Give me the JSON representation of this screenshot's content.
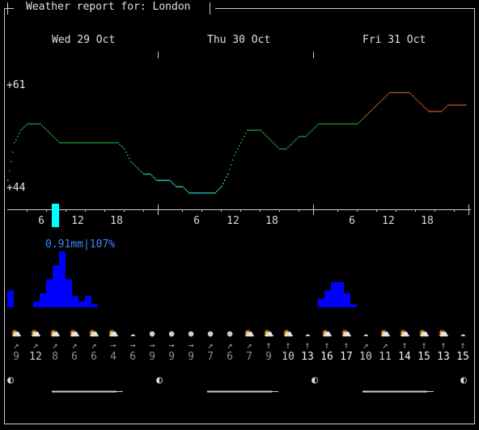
{
  "title": "Weather report for: London",
  "days": [
    "Wed 29 Oct",
    "Thu 30 Oct",
    "Fri 31 Oct"
  ],
  "temperature_labels": {
    "max": "+61",
    "min": "+44"
  },
  "hour_ticks": [
    "6",
    "12",
    "18",
    "6",
    "12",
    "18",
    "6",
    "12",
    "18"
  ],
  "precip_label": "0.91mm|107%",
  "colors": {
    "cold": "#33e6e6",
    "mild": "#22b14c",
    "warm": "#e65c2a",
    "rain": "#0000ff",
    "precip_text": "#3b8bff",
    "current_hour": "#00ffff"
  },
  "icons": [
    "cloud-sun",
    "cloud-sun",
    "cloud-sun",
    "cloud-sun",
    "cloud-sun",
    "cloud-sun",
    "cloud",
    "moon-full",
    "moon-full",
    "moon-full",
    "moon-full",
    "moon-full",
    "cloud-sun",
    "cloud-sun",
    "cloud-sun",
    "cloud",
    "cloud-sun",
    "cloud-sun",
    "cloud",
    "cloud-sun",
    "cloud-sun",
    "cloud-sun",
    "cloud-sun",
    "cloud"
  ],
  "wind_dirs": [
    "↗",
    "↗",
    "↗",
    "↗",
    "↗",
    "→",
    "→",
    "→",
    "→",
    "→",
    "↗",
    "↗",
    "↗",
    "↑",
    "↑",
    "↑",
    "↑",
    "↑",
    "↗",
    "↗",
    "↑",
    "↑",
    "↑",
    "↑"
  ],
  "wind_speeds": [
    "9",
    "12",
    "8",
    "6",
    "6",
    "4",
    "6",
    "9",
    "9",
    "9",
    "7",
    "6",
    "7",
    "9",
    "10",
    "13",
    "16",
    "17",
    "10",
    "11",
    "14",
    "15",
    "13",
    "15"
  ],
  "moon_phase": "◐",
  "chart_data": {
    "type": "line",
    "title": "",
    "ylim": [
      44,
      61
    ],
    "temperature_points": [
      [
        0,
        46
      ],
      [
        1,
        52
      ],
      [
        2,
        54
      ],
      [
        3,
        55
      ],
      [
        4,
        55
      ],
      [
        5,
        55
      ],
      [
        6,
        54
      ],
      [
        7,
        53
      ],
      [
        8,
        52
      ],
      [
        9,
        52
      ],
      [
        10,
        52
      ],
      [
        11,
        52
      ],
      [
        12,
        52
      ],
      [
        13,
        52
      ],
      [
        14,
        52
      ],
      [
        15,
        52
      ],
      [
        16,
        52
      ],
      [
        17,
        52
      ],
      [
        18,
        51
      ],
      [
        19,
        49
      ],
      [
        20,
        48
      ],
      [
        21,
        47
      ],
      [
        22,
        47
      ],
      [
        23,
        46
      ],
      [
        24,
        46
      ],
      [
        25,
        46
      ],
      [
        26,
        45
      ],
      [
        27,
        45
      ],
      [
        28,
        44
      ],
      [
        29,
        44
      ],
      [
        30,
        44
      ],
      [
        31,
        44
      ],
      [
        32,
        44
      ],
      [
        33,
        45
      ],
      [
        34,
        47
      ],
      [
        35,
        50
      ],
      [
        36,
        52
      ],
      [
        37,
        54
      ],
      [
        38,
        54
      ],
      [
        39,
        54
      ],
      [
        40,
        53
      ],
      [
        41,
        52
      ],
      [
        42,
        51
      ],
      [
        43,
        51
      ],
      [
        44,
        52
      ],
      [
        45,
        53
      ],
      [
        46,
        53
      ],
      [
        47,
        54
      ],
      [
        48,
        55
      ],
      [
        49,
        55
      ],
      [
        50,
        55
      ],
      [
        51,
        55
      ],
      [
        52,
        55
      ],
      [
        53,
        55
      ],
      [
        54,
        55
      ],
      [
        55,
        56
      ],
      [
        56,
        57
      ],
      [
        57,
        58
      ],
      [
        58,
        59
      ],
      [
        59,
        60
      ],
      [
        60,
        60
      ],
      [
        61,
        60
      ],
      [
        62,
        60
      ],
      [
        63,
        59
      ],
      [
        64,
        58
      ],
      [
        65,
        57
      ],
      [
        66,
        57
      ],
      [
        67,
        57
      ],
      [
        68,
        58
      ],
      [
        69,
        58
      ],
      [
        70,
        58
      ],
      [
        71,
        58
      ]
    ],
    "precipitation_mm": [
      0.06,
      0,
      0,
      0,
      0.02,
      0.05,
      0.1,
      0.15,
      0.2,
      0.1,
      0.04,
      0.02,
      0.04,
      0.01,
      0,
      0,
      0,
      0,
      0,
      0,
      0,
      0,
      0,
      0,
      0,
      0,
      0,
      0,
      0,
      0,
      0,
      0,
      0,
      0,
      0,
      0,
      0,
      0,
      0,
      0,
      0,
      0,
      0,
      0,
      0,
      0,
      0,
      0,
      0.03,
      0.06,
      0.09,
      0.09,
      0.05,
      0.01,
      0,
      0,
      0,
      0,
      0,
      0,
      0,
      0,
      0,
      0,
      0,
      0,
      0,
      0,
      0,
      0,
      0,
      0
    ]
  }
}
